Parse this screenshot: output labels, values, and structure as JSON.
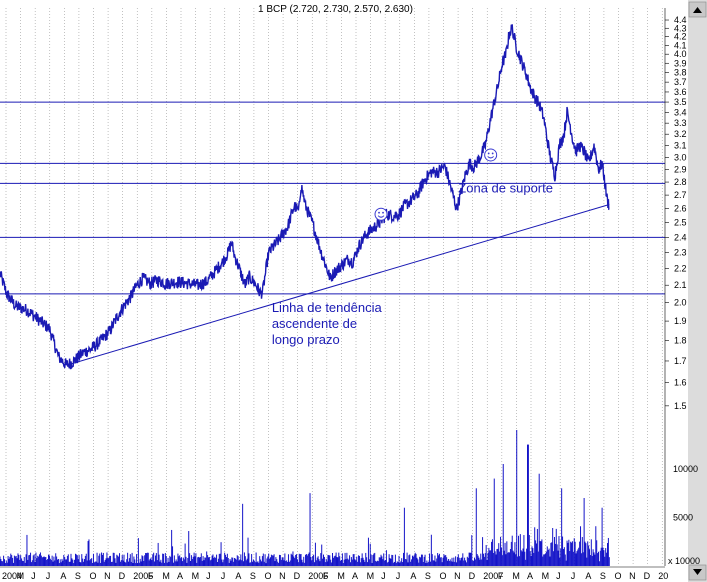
{
  "chart_data": {
    "type": "line",
    "title": "1 BCP (2.720, 2.730, 2.570, 2.630)",
    "price_scale": "log",
    "ylim": [
      1.45,
      4.55
    ],
    "y_ticks": [
      "4.4",
      "4.3",
      "4.2",
      "4.1",
      "4.0",
      "3.9",
      "3.8",
      "3.7",
      "3.6",
      "3.5",
      "3.4",
      "3.3",
      "3.2",
      "3.1",
      "3.0",
      "2.9",
      "2.8",
      "2.7",
      "2.6",
      "2.5",
      "2.4",
      "2.3",
      "2.2",
      "2.1",
      "2.0",
      "1.9",
      "1.8",
      "1.7",
      "1.6",
      "1.5"
    ],
    "volume_ticks": [
      "10000",
      "5000"
    ],
    "volume_corner_label": "x 10000",
    "x_ticks": [
      "2004",
      "M",
      "J",
      "J",
      "A",
      "S",
      "O",
      "N",
      "D",
      "2005",
      "F",
      "M",
      "A",
      "M",
      "J",
      "J",
      "A",
      "S",
      "O",
      "N",
      "D",
      "2006",
      "F",
      "M",
      "A",
      "M",
      "J",
      "J",
      "A",
      "S",
      "O",
      "N",
      "D",
      "2007",
      "F",
      "M",
      "A",
      "M",
      "J",
      "J",
      "A",
      "S",
      "O",
      "N",
      "D",
      "20"
    ],
    "x_range_days": [
      0,
      1480
    ],
    "price_series": {
      "name": "BCP",
      "color": "#1a1ab4",
      "anchors_day_close": [
        [
          0,
          2.17
        ],
        [
          15,
          2.05
        ],
        [
          35,
          1.98
        ],
        [
          60,
          1.96
        ],
        [
          90,
          1.9
        ],
        [
          110,
          1.86
        ],
        [
          130,
          1.72
        ],
        [
          148,
          1.68
        ],
        [
          165,
          1.7
        ],
        [
          185,
          1.74
        ],
        [
          205,
          1.76
        ],
        [
          225,
          1.8
        ],
        [
          245,
          1.85
        ],
        [
          260,
          1.92
        ],
        [
          275,
          1.98
        ],
        [
          290,
          2.03
        ],
        [
          305,
          2.1
        ],
        [
          318,
          2.14
        ],
        [
          335,
          2.11
        ],
        [
          350,
          2.13
        ],
        [
          370,
          2.11
        ],
        [
          395,
          2.12
        ],
        [
          420,
          2.11
        ],
        [
          440,
          2.1
        ],
        [
          460,
          2.12
        ],
        [
          478,
          2.18
        ],
        [
          495,
          2.24
        ],
        [
          508,
          2.3
        ],
        [
          515,
          2.37
        ],
        [
          522,
          2.28
        ],
        [
          530,
          2.22
        ],
        [
          545,
          2.1
        ],
        [
          555,
          2.15
        ],
        [
          570,
          2.1
        ],
        [
          580,
          2.05
        ],
        [
          585,
          2.07
        ],
        [
          598,
          2.3
        ],
        [
          620,
          2.38
        ],
        [
          640,
          2.47
        ],
        [
          655,
          2.62
        ],
        [
          665,
          2.58
        ],
        [
          670,
          2.78
        ],
        [
          680,
          2.62
        ],
        [
          695,
          2.5
        ],
        [
          705,
          2.4
        ],
        [
          715,
          2.3
        ],
        [
          725,
          2.22
        ],
        [
          735,
          2.14
        ],
        [
          745,
          2.18
        ],
        [
          760,
          2.22
        ],
        [
          775,
          2.26
        ],
        [
          785,
          2.24
        ],
        [
          800,
          2.35
        ],
        [
          815,
          2.42
        ],
        [
          830,
          2.46
        ],
        [
          845,
          2.5
        ],
        [
          860,
          2.56
        ],
        [
          875,
          2.55
        ],
        [
          888,
          2.56
        ],
        [
          900,
          2.62
        ],
        [
          915,
          2.66
        ],
        [
          930,
          2.71
        ],
        [
          945,
          2.82
        ],
        [
          960,
          2.88
        ],
        [
          975,
          2.88
        ],
        [
          990,
          2.93
        ],
        [
          1000,
          2.8
        ],
        [
          1008,
          2.7
        ],
        [
          1016,
          2.6
        ],
        [
          1025,
          2.7
        ],
        [
          1035,
          2.85
        ],
        [
          1045,
          2.95
        ],
        [
          1055,
          2.92
        ],
        [
          1068,
          3.0
        ],
        [
          1080,
          3.1
        ],
        [
          1090,
          3.3
        ],
        [
          1100,
          3.5
        ],
        [
          1110,
          3.7
        ],
        [
          1118,
          3.9
        ],
        [
          1126,
          4.0
        ],
        [
          1134,
          4.25
        ],
        [
          1140,
          4.3
        ],
        [
          1148,
          4.1
        ],
        [
          1155,
          4.0
        ],
        [
          1162,
          3.9
        ],
        [
          1170,
          3.8
        ],
        [
          1180,
          3.65
        ],
        [
          1190,
          3.55
        ],
        [
          1200,
          3.48
        ],
        [
          1210,
          3.35
        ],
        [
          1218,
          3.15
        ],
        [
          1225,
          3.0
        ],
        [
          1235,
          2.85
        ],
        [
          1245,
          3.1
        ],
        [
          1255,
          3.2
        ],
        [
          1262,
          3.4
        ],
        [
          1268,
          3.3
        ],
        [
          1275,
          3.15
        ],
        [
          1282,
          3.05
        ],
        [
          1290,
          3.1
        ],
        [
          1300,
          3.05
        ],
        [
          1310,
          2.95
        ],
        [
          1322,
          3.1
        ],
        [
          1332,
          2.9
        ],
        [
          1340,
          2.95
        ],
        [
          1346,
          2.8
        ],
        [
          1352,
          2.65
        ],
        [
          1356,
          2.63
        ]
      ]
    },
    "volume": {
      "color": "#1414c8",
      "ylim": [
        0,
        14000
      ],
      "notable_spikes_day_value": [
        [
          60,
          3200
        ],
        [
          420,
          3600
        ],
        [
          540,
          6400
        ],
        [
          690,
          7500
        ],
        [
          900,
          6000
        ],
        [
          1060,
          8000
        ],
        [
          1100,
          9000
        ],
        [
          1120,
          10500
        ],
        [
          1150,
          14000
        ],
        [
          1175,
          12500
        ],
        [
          1200,
          9500
        ],
        [
          1250,
          8000
        ],
        [
          1300,
          7000
        ],
        [
          1340,
          6000
        ]
      ]
    },
    "horizontal_lines": [
      3.5,
      2.95,
      2.79,
      2.4,
      2.05
    ],
    "trendline": {
      "from": [
        148,
        1.68
      ],
      "to": [
        1356,
        2.63
      ]
    },
    "annotations": [
      {
        "text_lines": [
          "Linha de tendência",
          "ascendente de",
          "longo prazo"
        ],
        "at_day": 605,
        "at_price": 1.95
      },
      {
        "text_lines": [
          "Zona de suporte"
        ],
        "at_day": 1020,
        "at_price": 2.72
      }
    ],
    "smiley_markers": [
      [
        848,
        2.56
      ],
      [
        1092,
        3.02
      ]
    ],
    "grid": "vertical dotted",
    "legend": "none"
  }
}
